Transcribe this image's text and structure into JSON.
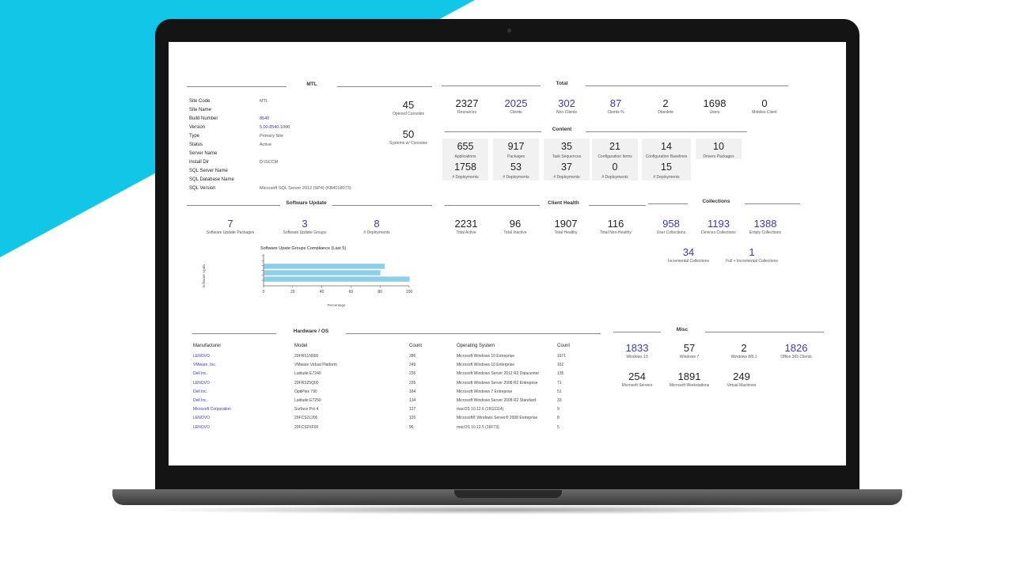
{
  "site": {
    "title": "MTL",
    "rows": [
      {
        "label": "Site Code",
        "value": "MTL",
        "link": false
      },
      {
        "label": "Site Name",
        "value": "",
        "link": false
      },
      {
        "label": "Build Number",
        "value": "8540",
        "link": true
      },
      {
        "label": "Version",
        "value": "5.00.8540.1000",
        "link": true
      },
      {
        "label": "Type",
        "value": "Primary Site",
        "link": false
      },
      {
        "label": "Status",
        "value": "Active",
        "link": false
      },
      {
        "label": "Server Name",
        "value": "",
        "link": false
      },
      {
        "label": "Install Dir",
        "value": "D:\\SCCM",
        "link": false
      },
      {
        "label": "SQL Server Name",
        "value": "",
        "link": false
      },
      {
        "label": "SQL Database Name",
        "value": "",
        "link": false
      },
      {
        "label": "SQL Version",
        "value": "Microsoft SQL Server 2012 (SP4) (KB4018073)",
        "link": false
      }
    ],
    "consoles": [
      {
        "value": "45",
        "caption": "Opened Consoles"
      },
      {
        "value": "50",
        "caption": "Systems w/ Consoles"
      }
    ]
  },
  "total": {
    "title": "Total",
    "items": [
      {
        "value": "2327",
        "caption": "Resources",
        "blue": false
      },
      {
        "value": "2025",
        "caption": "Clients",
        "blue": true
      },
      {
        "value": "302",
        "caption": "Non-Clients",
        "blue": true
      },
      {
        "value": "87",
        "caption": "Clients %",
        "blue": true
      },
      {
        "value": "2",
        "caption": "Obsolete",
        "blue": false
      },
      {
        "value": "1698",
        "caption": "Users",
        "blue": false
      },
      {
        "value": "0",
        "caption": "Mobiles Client",
        "blue": false
      }
    ]
  },
  "content": {
    "title": "Content",
    "cards": [
      {
        "value": "655",
        "caption": "Applications",
        "deploy_value": "1758",
        "deploy_caption": "# Deployments"
      },
      {
        "value": "917",
        "caption": "Packages",
        "deploy_value": "53",
        "deploy_caption": "# Deployments"
      },
      {
        "value": "35",
        "caption": "Task Sequences",
        "deploy_value": "37",
        "deploy_caption": "# Deployments"
      },
      {
        "value": "21",
        "caption": "Configuration Items",
        "deploy_value": "0",
        "deploy_caption": "# Deployments"
      },
      {
        "value": "14",
        "caption": "Configuration Baselines",
        "deploy_value": "15",
        "deploy_caption": "# Deployments"
      },
      {
        "value": "10",
        "caption": "Drivers Packages",
        "deploy_value": "",
        "deploy_caption": ""
      }
    ]
  },
  "software_update": {
    "title": "Software Update",
    "items": [
      {
        "value": "7",
        "caption": "Software Update Packages"
      },
      {
        "value": "3",
        "caption": "Software Update Groups"
      },
      {
        "value": "8",
        "caption": "# Deployments"
      }
    ]
  },
  "client_health": {
    "title": "Client Health",
    "items": [
      {
        "value": "2231",
        "caption": "Total Active"
      },
      {
        "value": "96",
        "caption": "Total Inactive"
      },
      {
        "value": "1907",
        "caption": "Total Healthy"
      },
      {
        "value": "116",
        "caption": "Total Non-Healthy"
      }
    ]
  },
  "collections": {
    "title": "Collections",
    "items": [
      {
        "value": "958",
        "caption": "User Collections"
      },
      {
        "value": "1193",
        "caption": "Devices Collections"
      },
      {
        "value": "1388",
        "caption": "Empty Collections"
      },
      {
        "value": "34",
        "caption": "Incremental Collections"
      },
      {
        "value": "1",
        "caption": "Full + Incremental Collections"
      }
    ]
  },
  "chart_data": {
    "type": "bar",
    "orientation": "horizontal",
    "title": "Software Upate Groups Compliance (Last 5)",
    "xlabel": "Percentage",
    "ylabel": "Software Upda",
    "xlim": [
      0,
      100
    ],
    "xticks": [
      "0",
      "20",
      "40",
      "60",
      "80",
      "100"
    ],
    "values": [
      83,
      80,
      100
    ],
    "bar_color": "#8ccfe6"
  },
  "hardware": {
    "title": "Hardware / OS",
    "headers": {
      "manufacturer": "Manufacturer",
      "model": "Model",
      "count": "Count",
      "os": "Operating System",
      "os_count": "Count"
    },
    "rows": [
      {
        "manufacturer": "LENOVO",
        "model": "20FRS1N900",
        "count": "286",
        "os": "Microsoft Windows 10 Entreprise",
        "os_count": "1671"
      },
      {
        "manufacturer": "VMware, Inc.",
        "model": "VMware Virtual Platform",
        "count": "249",
        "os": "Microsoft Windows 10 Enterprise",
        "os_count": "162"
      },
      {
        "manufacturer": "Dell Inc.",
        "model": "Latitude E7240",
        "count": "235",
        "os": "Microsoft Windows Server 2012 R2 Datacenter",
        "os_count": "135"
      },
      {
        "manufacturer": "LENOVO",
        "model": "20FRS25Q00",
        "count": "225",
        "os": "Microsoft Windows Server 2008 R2 Entreprise",
        "os_count": "71"
      },
      {
        "manufacturer": "Dell Inc.",
        "model": "OptiPlex 790",
        "count": "184",
        "os": "Microsoft Windows 7 Entreprise",
        "os_count": "51"
      },
      {
        "manufacturer": "Dell Inc.",
        "model": "Latitude E7250",
        "count": "134",
        "os": "Microsoft Windows Server 2008 R2 Standard",
        "os_count": "33"
      },
      {
        "manufacturer": "Microsoft Corporation",
        "model": "Surface Pro 4",
        "count": "127",
        "os": "macOS 10.12.6 (16G1114)",
        "os_count": "9"
      },
      {
        "manufacturer": "LENOVO",
        "model": "20FCS21200",
        "count": "120",
        "os": "Microsoft® Windows Server® 2008 Entreprise",
        "os_count": "8"
      },
      {
        "manufacturer": "LENOVO",
        "model": "20FCS2XF00",
        "count": "96",
        "os": "macOS 10.12.5 (16F73)",
        "os_count": "5"
      }
    ]
  },
  "misc": {
    "title": "Misc",
    "items": [
      {
        "value": "1833",
        "caption": "Windows 10",
        "blue": true
      },
      {
        "value": "57",
        "caption": "Windows 7",
        "blue": false
      },
      {
        "value": "2",
        "caption": "Windows 8/8.1",
        "blue": false
      },
      {
        "value": "1826",
        "caption": "Office 365 Clients",
        "blue": true
      },
      {
        "value": "254",
        "caption": "Microsoft Servers",
        "blue": false
      },
      {
        "value": "1891",
        "caption": "Microsoft Workstations",
        "blue": false
      },
      {
        "value": "249",
        "caption": "Virtual Machines",
        "blue": false
      }
    ]
  }
}
